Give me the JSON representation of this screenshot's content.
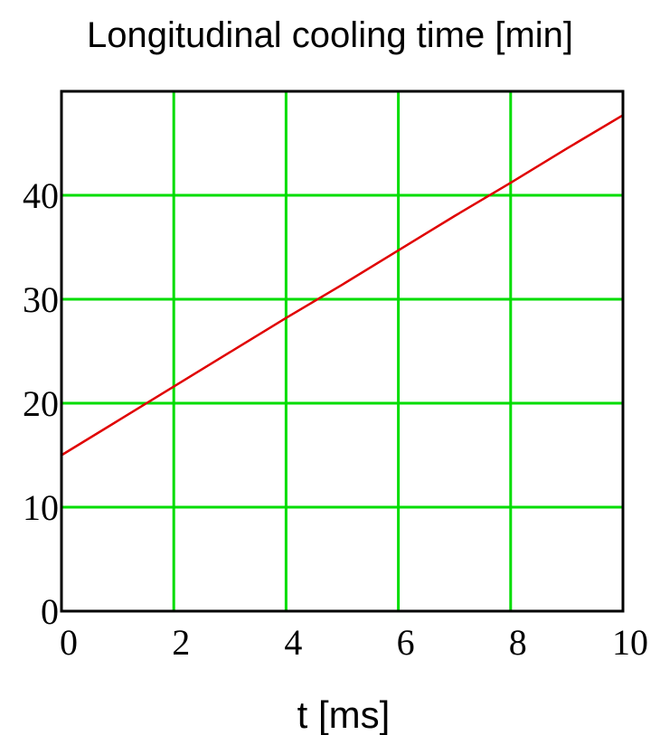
{
  "chart_data": {
    "type": "line",
    "title": "Longitudinal cooling time [min]",
    "xlabel": "t [ms]",
    "ylabel": "",
    "xlim": [
      0,
      10
    ],
    "ylim": [
      0,
      50
    ],
    "x_ticks": [
      0,
      2,
      4,
      6,
      8,
      10
    ],
    "y_ticks": [
      0,
      10,
      20,
      30,
      40
    ],
    "grid": true,
    "colors": {
      "grid": "#00dd00",
      "line": "#e00000",
      "frame": "#000000"
    },
    "series": [
      {
        "x": [
          0,
          1,
          2,
          3,
          4,
          5,
          6,
          7,
          8,
          9,
          10
        ],
        "y": [
          15.0,
          18.3,
          21.6,
          24.9,
          28.2,
          31.4,
          34.7,
          38.0,
          41.2,
          44.5,
          47.7
        ]
      }
    ]
  }
}
